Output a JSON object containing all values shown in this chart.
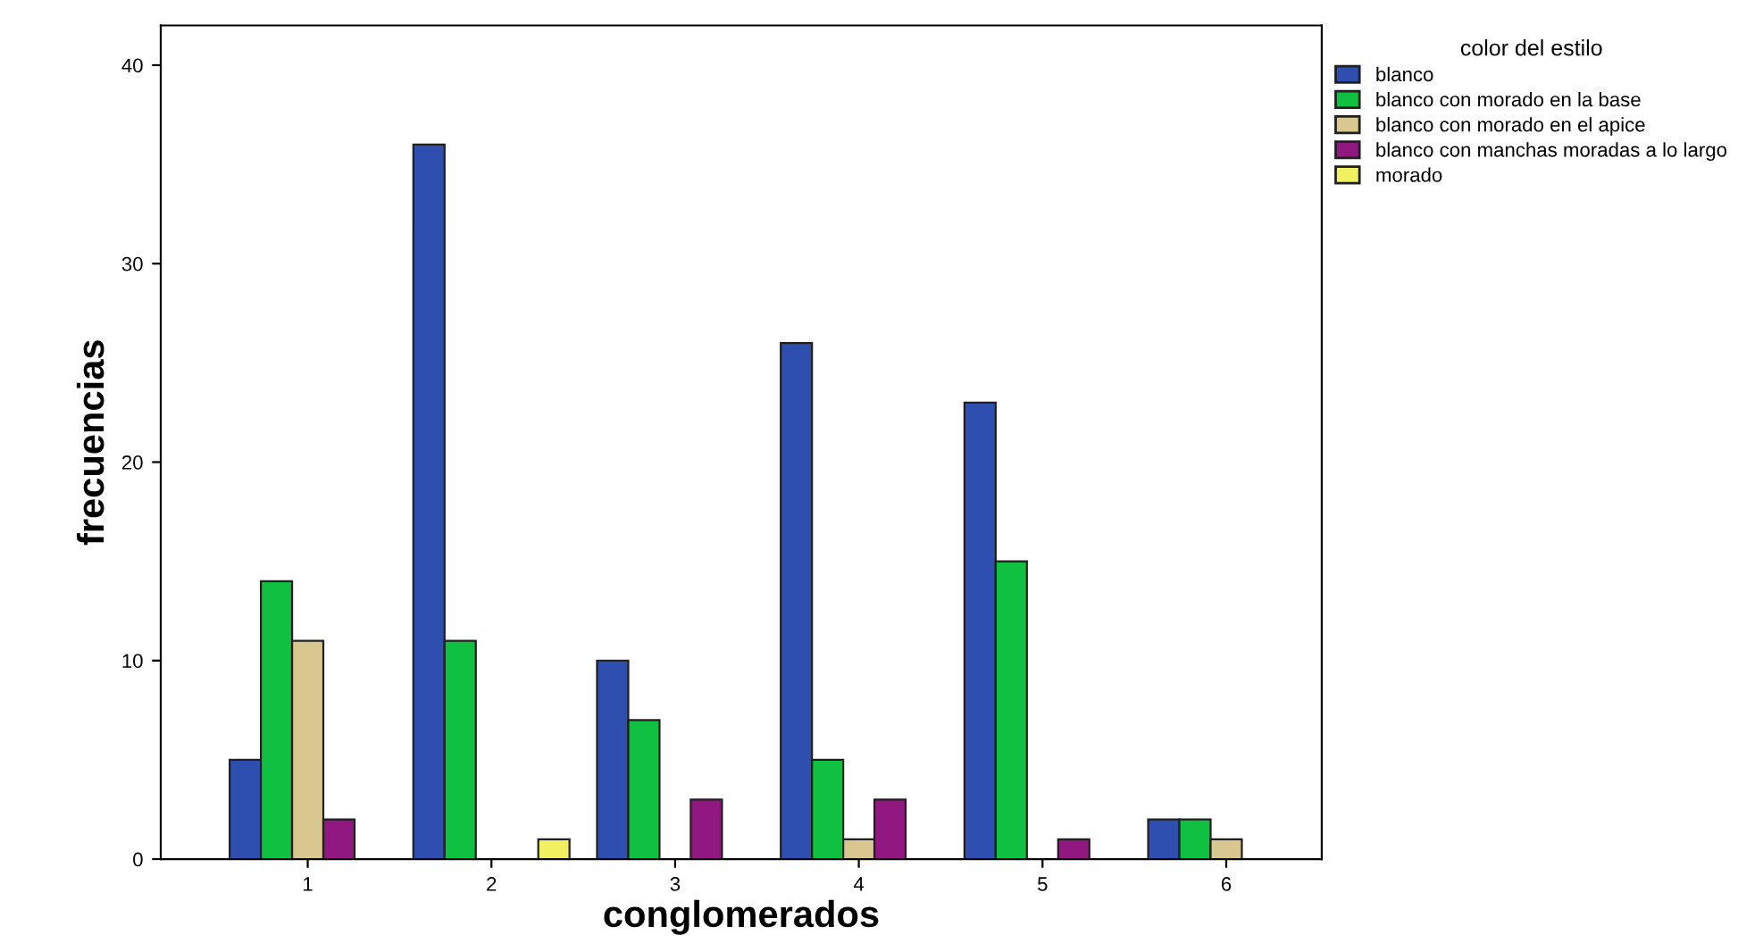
{
  "chart_data": {
    "type": "bar",
    "xlabel": "conglomerados",
    "ylabel": "frecuencias",
    "legend_title": "color del estilo",
    "legend": "right",
    "grid": false,
    "categories": [
      "1",
      "2",
      "3",
      "4",
      "5",
      "6"
    ],
    "ylim": [
      0,
      42
    ],
    "yticks": [
      0,
      10,
      20,
      30,
      40
    ],
    "series": [
      {
        "name": "blanco",
        "color": "#2f4fb0",
        "values": [
          5,
          36,
          10,
          26,
          23,
          2
        ]
      },
      {
        "name": "blanco con morado en la base",
        "color": "#10c040",
        "values": [
          14,
          11,
          7,
          5,
          15,
          2
        ]
      },
      {
        "name": "blanco con morado en el apice",
        "color": "#d8c890",
        "values": [
          11,
          null,
          null,
          1,
          null,
          1
        ]
      },
      {
        "name": "blanco con manchas moradas a lo largo",
        "color": "#901880",
        "values": [
          2,
          null,
          3,
          3,
          1,
          null
        ]
      },
      {
        "name": "morado",
        "color": "#f0f060",
        "values": [
          null,
          1,
          null,
          null,
          null,
          null
        ]
      }
    ]
  }
}
